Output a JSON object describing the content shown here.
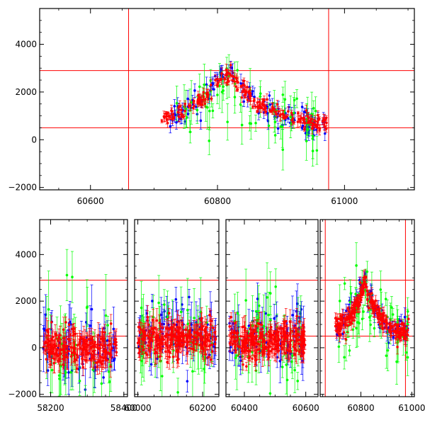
{
  "figure": {
    "background": "#ffffff"
  },
  "colors": {
    "blue": "#0000ff",
    "green": "#00ff00",
    "red": "#ff0000",
    "axis": "#000000"
  },
  "chart_data": [
    {
      "type": "scatter",
      "title": "",
      "xlabel": "",
      "ylabel": "",
      "xlim": [
        60520,
        61110
      ],
      "ylim": [
        -2100,
        5500
      ],
      "x_ticks": [
        60600,
        60800,
        61000
      ],
      "y_ticks": [
        -2000,
        0,
        2000,
        4000
      ],
      "tick_labels_x": [
        "60600",
        "60800",
        "61000"
      ],
      "tick_labels_y": [
        "−2000",
        "0",
        "2000",
        "4000"
      ],
      "error_bars": true,
      "grid": false,
      "legend": "none",
      "reference_lines": {
        "horizontal": [
          500,
          2900
        ],
        "vertical": [
          60660,
          60975
        ]
      },
      "series": [
        {
          "color": "#0000ff",
          "segments": [
            {
              "x_range": [
                60725,
                60970
              ],
              "level": 500,
              "peak_center": 60815,
              "peak_height": 2500,
              "peak_width": 55,
              "scatter": 260,
              "n": 120
            }
          ]
        },
        {
          "color": "#00ff00",
          "segments": [
            {
              "x_range": [
                60735,
                60960
              ],
              "level": 500,
              "peak_center": 60815,
              "peak_height": 2000,
              "peak_width": 60,
              "scatter": 650,
              "n": 70
            }
          ]
        },
        {
          "color": "#ff0000",
          "segments": [
            {
              "x_range": [
                60710,
                60975
              ],
              "level": 500,
              "peak_center": 60815,
              "peak_height": 2450,
              "peak_width": 58,
              "scatter": 160,
              "n": 200
            }
          ]
        }
      ]
    },
    {
      "type": "scatter",
      "title": "",
      "xlabel": "",
      "ylabel": "",
      "segmented_x_axis": true,
      "panels": [
        {
          "xlim": [
            58170,
            58410
          ],
          "x_ticks": [
            58200,
            58400
          ],
          "tick_labels_x": [
            "58200",
            "58400"
          ]
        },
        {
          "xlim": [
            59990,
            60250
          ],
          "x_ticks": [
            60000,
            60200
          ],
          "tick_labels_x": [
            "60000",
            "60200"
          ]
        },
        {
          "xlim": [
            60340,
            60640
          ],
          "x_ticks": [
            60400,
            60600
          ],
          "tick_labels_x": [
            "60400",
            "60600"
          ]
        },
        {
          "xlim": [
            60640,
            61010
          ],
          "x_ticks": [
            60800,
            61000
          ],
          "tick_labels_x": [
            "60800",
            "61000"
          ]
        }
      ],
      "ylim": [
        -2100,
        5500
      ],
      "y_ticks": [
        -2000,
        0,
        2000,
        4000
      ],
      "tick_labels_y": [
        "−2000",
        "0",
        "2000",
        "4000"
      ],
      "error_bars": true,
      "grid": false,
      "legend": "none",
      "reference_lines": {
        "horizontal": [
          500,
          2900
        ],
        "vertical": [
          60660,
          60975
        ]
      },
      "series": [
        {
          "color": "#0000ff",
          "segments": [
            {
              "x_range": [
                58180,
                58380
              ],
              "level": 0,
              "scatter": 700,
              "n": 60
            },
            {
              "x_range": [
                60000,
                60240
              ],
              "level": 600,
              "scatter": 650,
              "n": 70
            },
            {
              "x_range": [
                60350,
                60600
              ],
              "level": 500,
              "scatter": 650,
              "n": 70
            },
            {
              "x_range": [
                60700,
                60990
              ],
              "level": 500,
              "peak_center": 60815,
              "peak_height": 2500,
              "peak_width": 55,
              "scatter": 280,
              "n": 90
            }
          ]
        },
        {
          "color": "#00ff00",
          "segments": [
            {
              "x_range": [
                58185,
                58370
              ],
              "level": 0,
              "scatter": 1200,
              "n": 35
            },
            {
              "x_range": [
                60005,
                60235
              ],
              "level": 400,
              "scatter": 1000,
              "n": 45
            },
            {
              "x_range": [
                60355,
                60590
              ],
              "level": 300,
              "scatter": 1000,
              "n": 45
            },
            {
              "x_range": [
                60710,
                60985
              ],
              "level": 400,
              "peak_center": 60815,
              "peak_height": 1900,
              "peak_width": 60,
              "scatter": 700,
              "n": 55
            }
          ]
        },
        {
          "color": "#ff0000",
          "segments": [
            {
              "x_range": [
                58180,
                58380
              ],
              "level": 0,
              "scatter": 400,
              "n": 200
            },
            {
              "x_range": [
                60000,
                60240
              ],
              "level": 400,
              "scatter": 380,
              "n": 240
            },
            {
              "x_range": [
                60350,
                60600
              ],
              "level": 300,
              "scatter": 380,
              "n": 240
            },
            {
              "x_range": [
                60700,
                60990
              ],
              "level": 500,
              "peak_center": 60815,
              "peak_height": 2300,
              "peak_width": 58,
              "scatter": 220,
              "n": 220
            }
          ]
        }
      ]
    }
  ]
}
